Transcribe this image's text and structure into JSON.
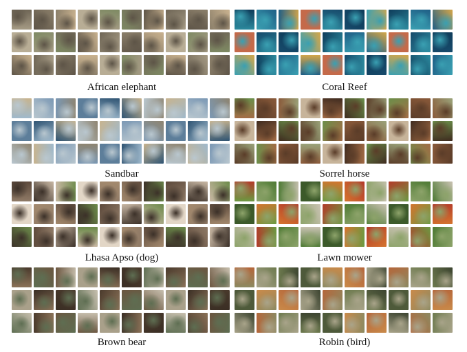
{
  "panels": [
    {
      "label": "African elephant",
      "palette": [
        "#8b7f6a",
        "#a59a84",
        "#6f6656",
        "#b8ad95",
        "#5d5447",
        "#c9b28f",
        "#7e8a63"
      ]
    },
    {
      "label": "Coral Reef",
      "palette": [
        "#1f5f86",
        "#2c8a9e",
        "#0e3c5a",
        "#c46a4a",
        "#3aa0b2",
        "#d4a64a",
        "#174a6b"
      ]
    },
    {
      "label": "Sandbar",
      "palette": [
        "#7b98b4",
        "#9fb9cc",
        "#c8b48f",
        "#5d7e9a",
        "#b9c7cf",
        "#8e8470",
        "#2f5473"
      ]
    },
    {
      "label": "Sorrel horse",
      "palette": [
        "#8a5a3a",
        "#a36c45",
        "#6b8f4a",
        "#c7b49a",
        "#5a3c28",
        "#9aa37a",
        "#3f2b1f"
      ]
    },
    {
      "label": "Lhasa Apso (dog)",
      "palette": [
        "#c9b8a4",
        "#8f7a66",
        "#5d4a3c",
        "#e2d6c6",
        "#3b3028",
        "#6c8a4a",
        "#a48a6e"
      ]
    },
    {
      "label": "Lawn mower",
      "palette": [
        "#4e7a34",
        "#6b9a42",
        "#b33a2a",
        "#3c5a2a",
        "#8da36a",
        "#c9c2b2",
        "#d4742e"
      ]
    },
    {
      "label": "Brown bear",
      "palette": [
        "#6b5640",
        "#8a7258",
        "#4a3a2c",
        "#a9a08a",
        "#5e6e52",
        "#c7bfae",
        "#3a2e24"
      ]
    },
    {
      "label": "Robin (bird)",
      "palette": [
        "#6d7a4e",
        "#8c8a62",
        "#b5663a",
        "#4e5a3a",
        "#a9a48a",
        "#3c4430",
        "#c98a4a"
      ]
    }
  ]
}
